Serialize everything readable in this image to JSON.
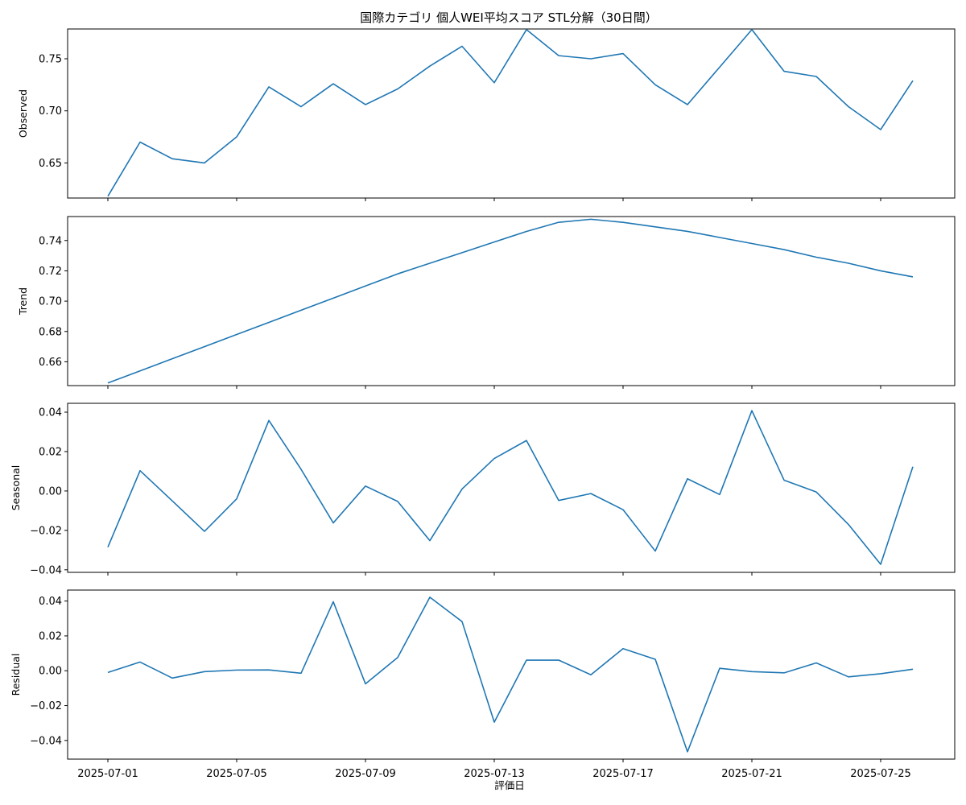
{
  "chart_data": {
    "type": "line",
    "title": "国際カテゴリ 個人WEI平均スコア STL分解（30日間）",
    "xlabel": "評価日",
    "line_color": "#1f77b4",
    "x": [
      "2025-07-01",
      "2025-07-02",
      "2025-07-03",
      "2025-07-04",
      "2025-07-05",
      "2025-07-06",
      "2025-07-07",
      "2025-07-08",
      "2025-07-09",
      "2025-07-10",
      "2025-07-11",
      "2025-07-12",
      "2025-07-13",
      "2025-07-14",
      "2025-07-15",
      "2025-07-16",
      "2025-07-17",
      "2025-07-18",
      "2025-07-19",
      "2025-07-20",
      "2025-07-21",
      "2025-07-22",
      "2025-07-23",
      "2025-07-24",
      "2025-07-25",
      "2025-07-26"
    ],
    "xticks": [
      "2025-07-01",
      "2025-07-05",
      "2025-07-09",
      "2025-07-13",
      "2025-07-17",
      "2025-07-21",
      "2025-07-25"
    ],
    "panels": [
      {
        "ylabel": "Observed",
        "ylim": [
          0.6163,
          0.7786
        ],
        "yticks": [
          "0.65",
          "0.70",
          "0.75"
        ],
        "values": [
          0.618,
          0.67,
          0.654,
          0.65,
          0.675,
          0.723,
          0.704,
          0.726,
          0.706,
          0.721,
          0.743,
          0.762,
          0.727,
          0.778,
          0.753,
          0.75,
          0.755,
          0.725,
          0.706,
          0.742,
          0.778,
          0.738,
          0.733,
          0.704,
          0.682,
          0.729
        ]
      },
      {
        "ylabel": "Trend",
        "ylim": [
          0.6443,
          0.7558
        ],
        "yticks": [
          "0.66",
          "0.68",
          "0.70",
          "0.72",
          "0.74"
        ],
        "values": [
          0.646,
          0.654,
          0.662,
          0.67,
          0.678,
          0.686,
          0.694,
          0.702,
          0.71,
          0.718,
          0.725,
          0.732,
          0.739,
          0.746,
          0.752,
          0.754,
          0.752,
          0.749,
          0.746,
          0.742,
          0.738,
          0.734,
          0.729,
          0.725,
          0.72,
          0.716
        ]
      },
      {
        "ylabel": "Seasonal",
        "ylim": [
          -0.0413,
          0.0445
        ],
        "yticks": [
          "-0.04",
          "-0.02",
          "0.00",
          "0.02",
          "0.04"
        ],
        "values": [
          -0.0285,
          0.0103,
          -0.005,
          -0.0205,
          -0.004,
          0.0358,
          0.011,
          -0.0162,
          0.0025,
          -0.0053,
          -0.0252,
          0.001,
          0.0165,
          0.0256,
          -0.0048,
          -0.0013,
          -0.0095,
          -0.0305,
          0.0062,
          -0.0018,
          0.0408,
          0.0055,
          -0.0005,
          -0.017,
          -0.0372,
          0.0123
        ]
      },
      {
        "ylabel": "Residual",
        "ylim": [
          -0.0507,
          0.0463
        ],
        "yticks": [
          "-0.04",
          "-0.02",
          "0.00",
          "0.02",
          "0.04"
        ],
        "values": [
          -0.001,
          0.005,
          -0.0042,
          -0.0005,
          0.0004,
          0.0005,
          -0.0014,
          0.0396,
          -0.0075,
          0.0076,
          0.0422,
          0.0282,
          -0.0295,
          0.0061,
          0.0061,
          -0.0023,
          0.0127,
          0.0066,
          -0.0465,
          0.0014,
          -0.0005,
          -0.0012,
          0.0045,
          -0.0035,
          -0.0017,
          0.0009
        ]
      }
    ]
  }
}
